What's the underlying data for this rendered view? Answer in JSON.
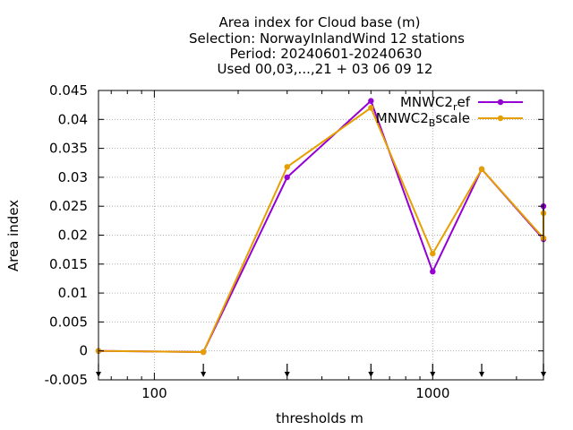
{
  "chart_data": {
    "type": "line",
    "title_lines": [
      "Area index  for Cloud base (m)",
      "Selection: NorwayInlandWind     12 stations",
      "Period: 20240601-20240630",
      "Used 00,03,...,21 + 03 06 09 12"
    ],
    "xlabel": "thresholds m",
    "ylabel": "Area index",
    "xscale": "log",
    "xlim": [
      63,
      2500
    ],
    "ylim": [
      -0.005,
      0.045
    ],
    "x_ticks": [
      100,
      1000
    ],
    "x_tick_labels": [
      "100",
      "1000"
    ],
    "y_ticks": [
      -0.005,
      0,
      0.005,
      0.01,
      0.015,
      0.02,
      0.025,
      0.03,
      0.035,
      0.04,
      0.045
    ],
    "y_tick_labels": [
      "-0.005",
      "0",
      "0.005",
      "0.01",
      "0.015",
      "0.02",
      "0.025",
      "0.03",
      "0.035",
      "0.04",
      "0.045"
    ],
    "grid": true,
    "legend_position": "top-right",
    "threshold_markers": [
      63,
      150,
      300,
      600,
      1000,
      1500,
      2500,
      2500
    ],
    "series": [
      {
        "name": "MNWC2_ref",
        "legend_main": "MNWC2",
        "legend_sub": "r",
        "legend_tail": "ef",
        "color": "#9400d3",
        "x": [
          63,
          150,
          300,
          600,
          1000,
          1500,
          2500,
          5000
        ],
        "y": [
          0.0,
          -0.0002,
          0.03,
          0.0432,
          0.0137,
          0.0314,
          0.0193,
          0.025
        ]
      },
      {
        "name": "MNWC2_Bscale",
        "legend_main": "MNWC2",
        "legend_sub": "B",
        "legend_tail": "scale",
        "color": "#e69f00",
        "x": [
          63,
          150,
          300,
          600,
          1000,
          1500,
          2500,
          5000
        ],
        "y": [
          0.0,
          -0.0002,
          0.0318,
          0.042,
          0.0168,
          0.0314,
          0.0195,
          0.0238
        ]
      }
    ]
  }
}
